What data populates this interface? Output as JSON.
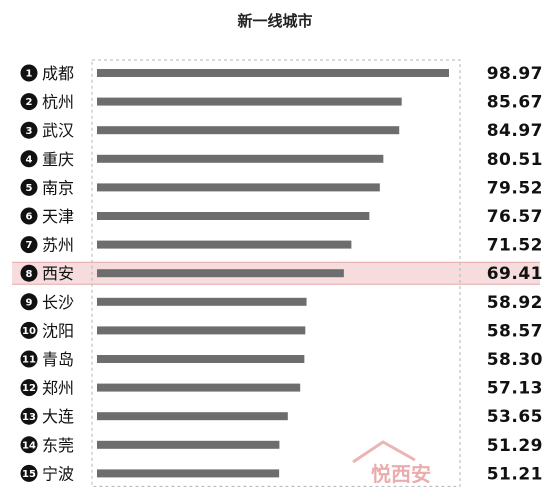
{
  "chart_data": {
    "type": "bar",
    "orientation": "horizontal",
    "title": "新一线城市",
    "highlight_index": 7,
    "colors": {
      "bar": "#6d6d6d",
      "highlight": "#f6dcdc",
      "badge": "#111111"
    },
    "categories": [
      "成都",
      "杭州",
      "武汉",
      "重庆",
      "南京",
      "天津",
      "苏州",
      "西安",
      "长沙",
      "沈阳",
      "青岛",
      "郑州",
      "大连",
      "东莞",
      "宁波"
    ],
    "ranks": [
      "1",
      "2",
      "3",
      "4",
      "5",
      "6",
      "7",
      "8",
      "9",
      "10",
      "11",
      "12",
      "13",
      "14",
      "15"
    ],
    "values": [
      98.97,
      85.67,
      84.97,
      80.51,
      79.52,
      76.57,
      71.52,
      69.41,
      58.92,
      58.57,
      58.3,
      57.13,
      53.65,
      51.29,
      51.21
    ],
    "value_labels": [
      "98.97",
      "85.67",
      "84.97",
      "80.51",
      "79.52",
      "76.57",
      "71.52",
      "69.41",
      "58.92",
      "58.57",
      "58.30",
      "57.13",
      "53.65",
      "51.29",
      "51.21"
    ]
  },
  "watermark": {
    "text": "悦西安"
  }
}
